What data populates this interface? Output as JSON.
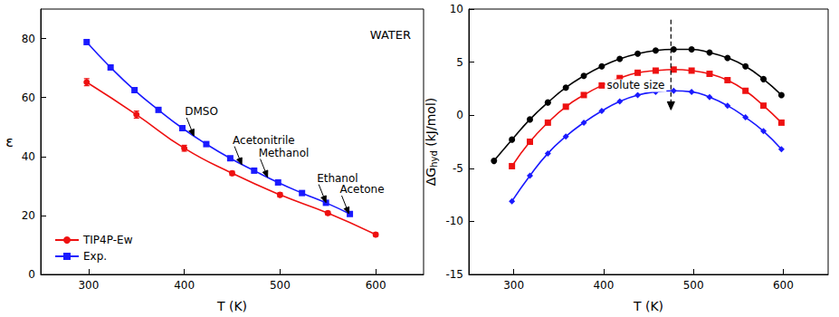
{
  "chart_data": [
    {
      "type": "line",
      "annotation": "WATER",
      "xlabel": "T (K)",
      "ylabel": "ε",
      "xlim": [
        250,
        650
      ],
      "ylim": [
        0,
        90
      ],
      "xticks": [
        300,
        400,
        500,
        600
      ],
      "yticks": [
        0,
        20,
        40,
        60,
        80
      ],
      "grid": false,
      "legend": "lower left",
      "series": [
        {
          "name": "TIP4P-Ew",
          "color": "#ee1111",
          "marker": "circle",
          "line_style": "solid",
          "x": [
            298,
            350,
            400,
            450,
            500,
            550,
            600
          ],
          "values": [
            65.2,
            54.2,
            42.8,
            34.3,
            27.0,
            20.8,
            13.5
          ],
          "errors": [
            1.2,
            1.2,
            1.0,
            0.7,
            0.7,
            0.6,
            0.6
          ]
        },
        {
          "name": "Exp.",
          "color": "#1a1aff",
          "marker": "square",
          "line_style": "solid",
          "x": [
            298,
            323,
            348,
            373,
            398,
            423,
            448,
            473,
            498,
            523,
            548,
            573
          ],
          "values": [
            78.8,
            70.2,
            62.5,
            55.8,
            49.6,
            44.2,
            39.4,
            35.2,
            31.2,
            27.6,
            24.3,
            20.5
          ]
        }
      ],
      "arrows": [
        {
          "text": "DMSO",
          "x": 410,
          "y": 47.0
        },
        {
          "text": "Acetonitrile",
          "x": 460,
          "y": 37.3
        },
        {
          "text": "Methanol",
          "x": 487,
          "y": 33.0
        },
        {
          "text": "Ethanol",
          "x": 548,
          "y": 24.4
        },
        {
          "text": "Acetone",
          "x": 572,
          "y": 20.6
        }
      ]
    },
    {
      "type": "line",
      "xlabel": "T (K)",
      "ylabel": "ΔGhyd (kJ/mol)",
      "ylabel_subscript": "hyd",
      "xlim": [
        250,
        650
      ],
      "ylim": [
        -15,
        10
      ],
      "xticks": [
        300,
        400,
        500,
        600
      ],
      "yticks": [
        -15,
        -10,
        -5,
        0,
        5,
        10
      ],
      "grid": false,
      "series": [
        {
          "color": "#000000",
          "marker": "circle",
          "line_style": "solid",
          "x": [
            278,
            298,
            318,
            338,
            358,
            378,
            398,
            418,
            438,
            458,
            478,
            498,
            518,
            538,
            558,
            578,
            598
          ],
          "values": [
            -4.3,
            -2.3,
            -0.4,
            1.2,
            2.6,
            3.7,
            4.6,
            5.3,
            5.8,
            6.1,
            6.2,
            6.2,
            5.9,
            5.4,
            4.6,
            3.4,
            1.9
          ]
        },
        {
          "color": "#ee1111",
          "marker": "square",
          "line_style": "solid",
          "x": [
            298,
            318,
            338,
            358,
            378,
            398,
            418,
            438,
            458,
            478,
            498,
            518,
            538,
            558,
            578,
            598
          ],
          "values": [
            -4.8,
            -2.5,
            -0.7,
            0.8,
            1.9,
            2.8,
            3.5,
            4.0,
            4.2,
            4.3,
            4.2,
            3.9,
            3.3,
            2.3,
            0.9,
            -0.7
          ]
        },
        {
          "color": "#1a1aff",
          "marker": "diamond",
          "line_style": "solid",
          "x": [
            298,
            318,
            338,
            358,
            378,
            398,
            418,
            438,
            458,
            478,
            498,
            518,
            538,
            558,
            578,
            598
          ],
          "values": [
            -8.1,
            -5.7,
            -3.6,
            -2.0,
            -0.7,
            0.4,
            1.3,
            1.9,
            2.2,
            2.3,
            2.2,
            1.7,
            0.9,
            -0.2,
            -1.5,
            -3.2
          ]
        }
      ],
      "arrow": {
        "text": "solute size",
        "x": 475,
        "y_start": 9,
        "y_end": 0.5
      }
    }
  ]
}
